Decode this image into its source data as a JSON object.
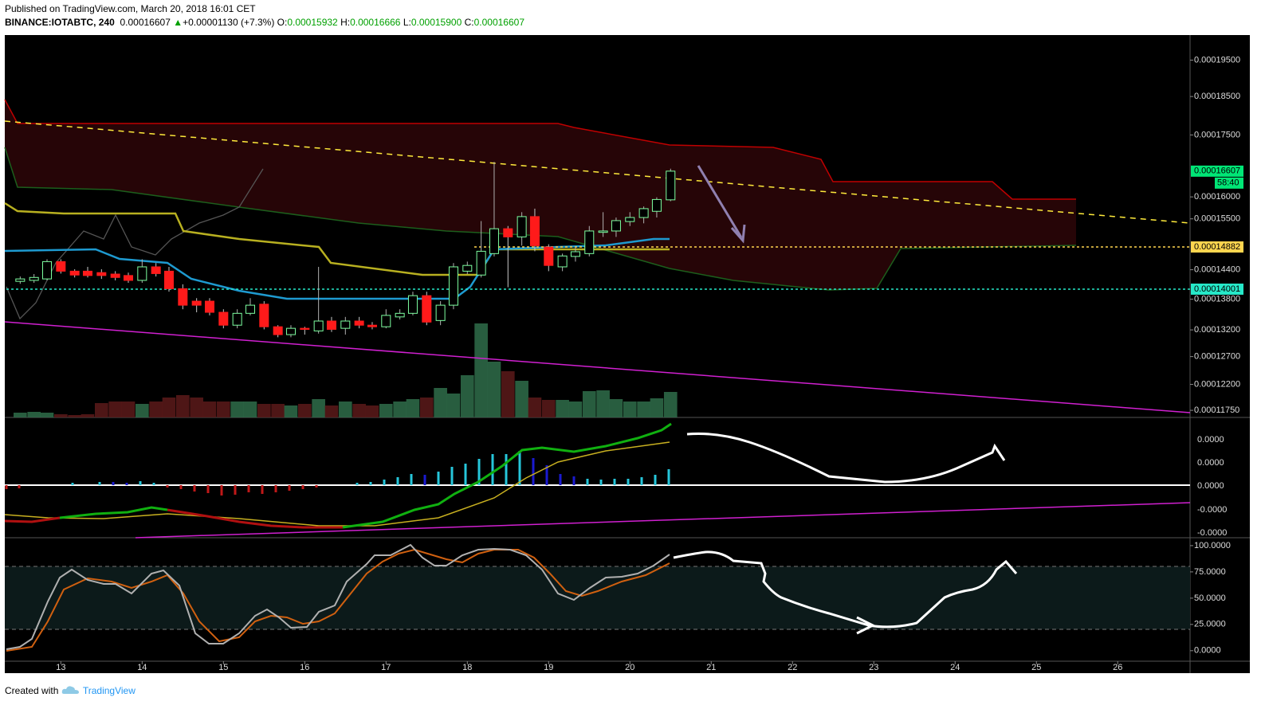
{
  "header": {
    "published": "Published on TradingView.com, March 20, 2018 16:01 CET",
    "symbol": "BINANCE:IOTABTC, 240",
    "last": "0.00016607",
    "arrow": "▲",
    "change": "+0.00001130 (+7.3%)",
    "o_label": "O:",
    "o": "0.00015932",
    "h_label": "H:",
    "h": "0.00016666",
    "l_label": "L:",
    "l": "0.00015900",
    "c_label": "C:",
    "c": "0.00016607"
  },
  "footer": {
    "created": "Created with",
    "brand": "TradingView"
  },
  "chart_data": {
    "type": "candlestick",
    "log_scale": true,
    "x": [
      12.5,
      12.67,
      12.83,
      13,
      13.17,
      13.33,
      13.5,
      13.67,
      13.83,
      14,
      14.17,
      14.33,
      14.5,
      14.67,
      14.83,
      15,
      15.17,
      15.33,
      15.5,
      15.67,
      15.83,
      16,
      16.17,
      16.33,
      16.5,
      16.67,
      16.83,
      17,
      17.17,
      17.33,
      17.5,
      17.67,
      17.83,
      18,
      18.17,
      18.33,
      18.5,
      18.67,
      18.83,
      19,
      19.17,
      19.33,
      19.5,
      19.67,
      19.83,
      20,
      20.17,
      20.33,
      20.5
    ],
    "xlim": [
      12.33,
      26.89
    ],
    "xticks": [
      13,
      14,
      15,
      16,
      17,
      18,
      19,
      20,
      21,
      22,
      23,
      24,
      25,
      26
    ],
    "ylim": [
      0.0001163,
      0.0002022
    ],
    "yticks": [
      {
        "value": 0.000195,
        "label": "0.00019500"
      },
      {
        "value": 0.000185,
        "label": "0.00018500"
      },
      {
        "value": 0.000175,
        "label": "0.00017500"
      },
      {
        "value": 0.00016,
        "label": "0.00016000"
      },
      {
        "value": 0.000155,
        "label": "0.00015500"
      },
      {
        "value": 0.000144,
        "label": "0.00014400"
      },
      {
        "value": 0.000138,
        "label": "0.00013800"
      },
      {
        "value": 0.000132,
        "label": "0.00013200"
      },
      {
        "value": 0.000127,
        "label": "0.00012700"
      },
      {
        "value": 0.000122,
        "label": "0.00012200"
      },
      {
        "value": 0.0001175,
        "label": "0.00011750"
      }
    ],
    "open": [
      0.0001416,
      0.0001418,
      0.0001421,
      0.0001457,
      0.0001437,
      0.0001437,
      0.0001434,
      0.0001431,
      0.0001428,
      0.0001418,
      0.0001446,
      0.0001437,
      0.0001401,
      0.0001376,
      0.0001376,
      0.0001354,
      0.0001329,
      0.0001352,
      0.000137,
      0.0001326,
      0.0001311,
      0.0001323,
      0.0001318,
      0.0001337,
      0.0001323,
      0.0001337,
      0.0001329,
      0.0001326,
      0.0001345,
      0.0001352,
      0.0001387,
      0.0001338,
      0.0001368,
      0.0001437,
      0.0001429,
      0.0001474,
      0.0001528,
      0.000151,
      0.0001555,
      0.0001488,
      0.0001446,
      0.0001468,
      0.0001474,
      0.000152,
      0.0001523,
      0.0001544,
      0.0001553,
      0.0001567,
      0.00015932
    ],
    "high": [
      0.0001426,
      0.0001431,
      0.0001462,
      0.0001462,
      0.0001441,
      0.0001446,
      0.0001441,
      0.0001437,
      0.0001434,
      0.0001462,
      0.0001454,
      0.0001446,
      0.000141,
      0.0001382,
      0.0001382,
      0.000136,
      0.000136,
      0.0001382,
      0.0001376,
      0.0001329,
      0.0001329,
      0.0001326,
      0.0001446,
      0.0001345,
      0.0001345,
      0.0001345,
      0.0001335,
      0.000136,
      0.000136,
      0.0001395,
      0.0001395,
      0.0001376,
      0.0001454,
      0.0001457,
      0.0001545,
      0.0001683,
      0.0001534,
      0.0001565,
      0.0001573,
      0.0001494,
      0.0001474,
      0.0001488,
      0.0001534,
      0.0001565,
      0.0001553,
      0.0001565,
      0.0001578,
      0.0001599,
      0.00016666
    ],
    "low": [
      0.0001411,
      0.0001413,
      0.0001418,
      0.0001432,
      0.0001424,
      0.0001424,
      0.0001421,
      0.0001418,
      0.0001413,
      0.0001413,
      0.0001426,
      0.0001395,
      0.000136,
      0.0001354,
      0.0001348,
      0.0001323,
      0.0001323,
      0.0001348,
      0.0001321,
      0.0001306,
      0.0001306,
      0.0001311,
      0.0001313,
      0.0001316,
      0.0001311,
      0.0001323,
      0.0001321,
      0.0001323,
      0.000134,
      0.0001348,
      0.0001329,
      0.0001329,
      0.000136,
      0.0001431,
      0.0001424,
      0.0001468,
      0.0001404,
      0.0001491,
      0.0001479,
      0.0001437,
      0.0001437,
      0.0001457,
      0.0001468,
      0.000151,
      0.000151,
      0.0001534,
      0.000154,
      0.0001553,
      0.000159
    ],
    "close": [
      0.0001421,
      0.0001424,
      0.0001457,
      0.0001437,
      0.0001429,
      0.0001428,
      0.0001428,
      0.0001424,
      0.0001418,
      0.0001446,
      0.0001432,
      0.0001401,
      0.0001368,
      0.0001368,
      0.0001354,
      0.0001329,
      0.0001352,
      0.0001368,
      0.0001326,
      0.0001311,
      0.0001323,
      0.0001321,
      0.0001337,
      0.0001321,
      0.0001337,
      0.0001329,
      0.0001326,
      0.0001348,
      0.0001352,
      0.0001387,
      0.0001335,
      0.0001368,
      0.0001446,
      0.0001449,
      0.0001479,
      0.0001528,
      0.000151,
      0.0001555,
      0.0001491,
      0.0001449,
      0.0001469,
      0.0001478,
      0.0001523,
      0.0001523,
      0.0001546,
      0.0001553,
      0.0001573,
      0.0001594,
      0.00016607
    ],
    "up_color": "#7dffa0",
    "down_color": "#ff1a1a",
    "volume": [
      6,
      7,
      6,
      4,
      3,
      4,
      18,
      20,
      20,
      17,
      20,
      25,
      28,
      25,
      20,
      20,
      20,
      20,
      17,
      17,
      15,
      17,
      23,
      15,
      20,
      17,
      15,
      17,
      20,
      23,
      25,
      37,
      30,
      53,
      118,
      70,
      58,
      46,
      25,
      22,
      22,
      20,
      33,
      34,
      23,
      20,
      20,
      24,
      32
    ],
    "volume_up_color": "#2f6d4a",
    "volume_down_color": "#5c1a1a",
    "price_lines": [
      {
        "value": 0.00016607,
        "label": "0.00016607",
        "color": "#00e676"
      },
      {
        "value": 0.00014882,
        "label": "0.00014882",
        "color": "#ffd54f"
      },
      {
        "value": 0.00014001,
        "label": "0.00014001",
        "color": "#26e8c8"
      }
    ],
    "countdown": "58:40",
    "macd_axis_labels": [
      "0.0000",
      "0.0000",
      "0.0000",
      "-0.0000",
      "-0.0000"
    ],
    "stoch": {
      "ylim": [
        -10,
        106
      ],
      "yticks": [
        {
          "value": 100,
          "label": "100.0000"
        },
        {
          "value": 75,
          "label": "75.0000"
        },
        {
          "value": 50,
          "label": "50.0000"
        },
        {
          "value": 25,
          "label": "25.0000"
        },
        {
          "value": 0,
          "label": "0.0000"
        }
      ]
    }
  }
}
